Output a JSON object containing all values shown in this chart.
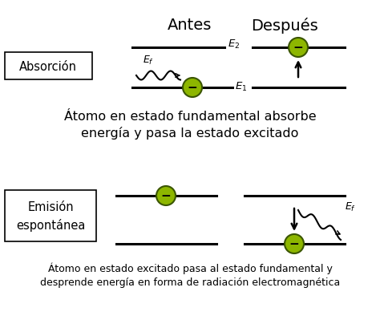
{
  "title_antes": "Antes",
  "title_despues": "Después",
  "label_absorcion": "Absorción",
  "label_emision": "Emisión\nespontánea",
  "caption1": "Átomo en estado fundamental absorbe\nenergía y pasa la estado excitado",
  "caption2": "Átomo en estado excitado pasa al estado fundamental y\ndesprende energía en forma de radiación electromagnética",
  "bg_color": "#ffffff",
  "electron_color": "#8db600",
  "electron_edge": "#3a5500",
  "line_color": "#000000",
  "text_color": "#000000",
  "box_color": "#ffffff"
}
